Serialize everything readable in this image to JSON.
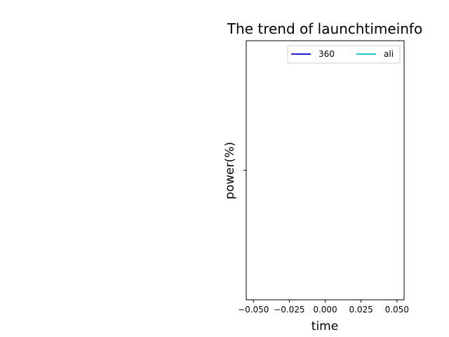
{
  "chart_data": {
    "type": "line",
    "title": "The trend of launchtimeinfo",
    "xlabel": "time",
    "ylabel": "power(%)",
    "xlim": [
      -0.055,
      0.055
    ],
    "x_ticks": [
      -0.05,
      -0.025,
      0.0,
      0.025,
      0.05
    ],
    "x_tick_labels": [
      "−0.050",
      "−0.025",
      "0.000",
      "0.025",
      "0.050"
    ],
    "y_ticks": [
      0
    ],
    "y_tick_labels": [
      ""
    ],
    "grid": false,
    "legend_position": "top-right",
    "series": [
      {
        "name": "360",
        "color": "#0000cc",
        "x": [],
        "y": []
      },
      {
        "name": "ali",
        "color": "#00bfbf",
        "x": [],
        "y": []
      }
    ]
  }
}
